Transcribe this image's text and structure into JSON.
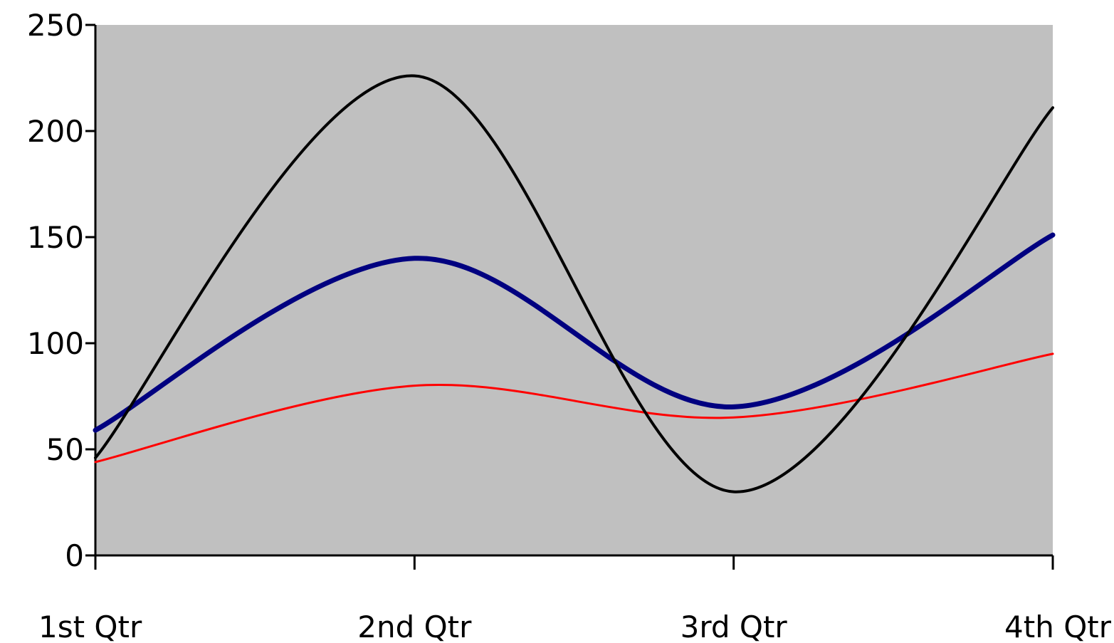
{
  "chart_data": {
    "type": "line",
    "smooth": true,
    "categories": [
      "1st Qtr",
      "2nd Qtr",
      "3rd Qtr",
      "4th Qtr"
    ],
    "ylim": [
      0,
      250
    ],
    "yticks": [
      "0",
      "50",
      "100",
      "150",
      "200",
      "250"
    ],
    "grid": false,
    "legend": "none",
    "plot_background": "#c0c0c0",
    "series": [
      {
        "color": "#ff0000",
        "values": [
          44,
          80,
          65,
          95
        ]
      },
      {
        "color": "#000080",
        "values": [
          59,
          140,
          70,
          151
        ]
      },
      {
        "color": "#000000",
        "values": [
          46,
          226,
          30,
          211
        ]
      }
    ]
  }
}
